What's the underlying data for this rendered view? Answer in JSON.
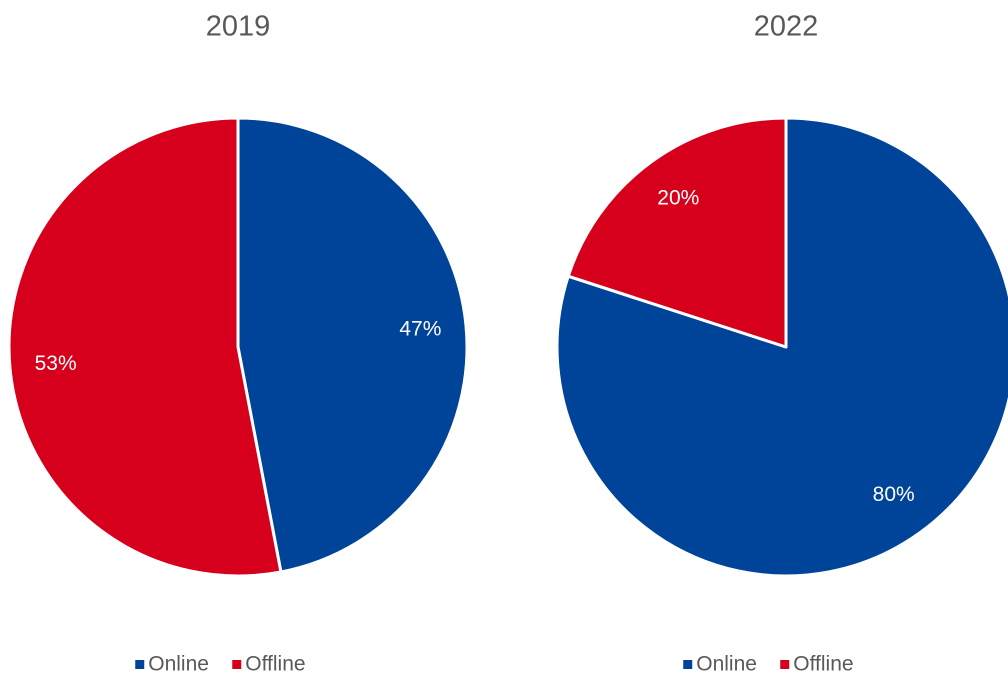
{
  "chart_data": [
    {
      "type": "pie",
      "title": "2019",
      "categories": [
        "Online",
        "Offline"
      ],
      "values": [
        47,
        53
      ],
      "value_labels": [
        "47%",
        "53%"
      ],
      "colors": [
        "#00449a",
        "#d6001c"
      ],
      "legend": "bottom"
    },
    {
      "type": "pie",
      "title": "2022",
      "categories": [
        "Online",
        "Offline"
      ],
      "values": [
        80,
        20
      ],
      "value_labels": [
        "80%",
        "20%"
      ],
      "colors": [
        "#00449a",
        "#d6001c"
      ],
      "legend": "bottom"
    }
  ]
}
